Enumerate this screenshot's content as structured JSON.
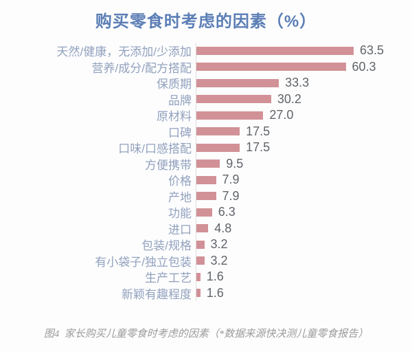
{
  "title": "购买零食时考虑的因素（%）",
  "caption": "图4  家长购买儿童零食时考虑的因素（*数据来源快决测儿童零食报告）",
  "colors": {
    "title_text": "#5b7eb5",
    "category_label": "#91a1bd",
    "bar_fill": "#d19196",
    "value_label": "#606468",
    "caption_text": "#9b9b9b",
    "axis_line": "#dcdcdc",
    "background": "#fdfdfe"
  },
  "chart_data": {
    "type": "bar",
    "orientation": "horizontal",
    "title": "购买零食时考虑的因素（%）",
    "categories": [
      "天然/健康，无添加/少添加",
      "营养/成分/配方搭配",
      "保质期",
      "品牌",
      "原材料",
      "口碑",
      "口味/口感搭配",
      "方便携带",
      "价格",
      "产地",
      "功能",
      "进口",
      "包装/规格",
      "有小袋子/独立包装",
      "生产工艺",
      "新颖有趣程度"
    ],
    "values": [
      63.5,
      60.3,
      33.3,
      30.2,
      27.0,
      17.5,
      17.5,
      9.5,
      7.9,
      7.9,
      6.3,
      4.8,
      3.2,
      3.2,
      1.6,
      1.6
    ],
    "value_labels": [
      "63.5",
      "60.3",
      "33.3",
      "30.2",
      "27.0",
      "17.5",
      "17.5",
      "9.5",
      "7.9",
      "7.9",
      "6.3",
      "4.8",
      "3.2",
      "3.2",
      "1.6",
      "1.6"
    ],
    "xlabel": "",
    "ylabel": "",
    "xlim": [
      0,
      70
    ],
    "grid": false,
    "legend": false,
    "data_labels": true
  }
}
